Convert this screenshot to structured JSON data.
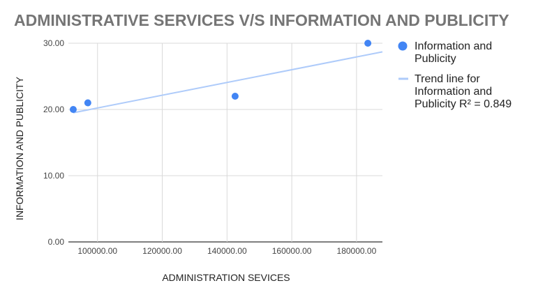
{
  "chart_data": {
    "type": "scatter",
    "title": "ADMINISTRATIVE SERVICES V/S INFORMATION AND PUBLICITY",
    "xlabel": "ADMINISTRATION SEVICES",
    "ylabel": "INFORMATION AND PUBLICITY",
    "xlim": [
      91000,
      188000
    ],
    "ylim": [
      0,
      30
    ],
    "x_ticks": [
      "100000.00",
      "120000.00",
      "140000.00",
      "160000.00",
      "180000.00"
    ],
    "y_ticks": [
      "0.00",
      "10.00",
      "20.00",
      "30.00"
    ],
    "grid": true,
    "legend_position": "right",
    "series": [
      {
        "name": "Information and Publicity",
        "color": "#4285f4",
        "points": [
          {
            "x": 92500,
            "y": 20
          },
          {
            "x": 97000,
            "y": 21
          },
          {
            "x": 142500,
            "y": 22
          },
          {
            "x": 183500,
            "y": 30
          }
        ]
      }
    ],
    "trendline": {
      "label": "Trend line for Information and Publicity R² = 0.849",
      "r_squared": 0.849,
      "color": "#aecbfa",
      "start": {
        "x": 92500,
        "y": 19.5
      },
      "end": {
        "x": 188000,
        "y": 28.7
      }
    },
    "legend": {
      "series_lines": [
        "Information and",
        "Publicity"
      ],
      "trend_lines": [
        "Trend line for",
        "Information and",
        "Publicity R² = 0.849"
      ]
    }
  }
}
